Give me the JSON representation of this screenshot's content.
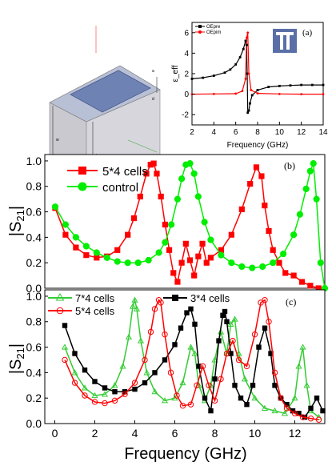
{
  "chart_data": [
    {
      "type": "diagram",
      "panel": "schematic",
      "labels": [
        "w",
        "h",
        "a",
        "d"
      ]
    },
    {
      "type": "line",
      "panel_label": "(a)",
      "xlabel": "Frequency (GHz)",
      "ylabel": "ε_eff",
      "xlim": [
        2,
        14
      ],
      "ylim": [
        -3,
        7
      ],
      "xticks": [
        2,
        4,
        6,
        8,
        10,
        12,
        14
      ],
      "yticks": [
        -2,
        0,
        2,
        4,
        6
      ],
      "legend_position": "top-left",
      "series": [
        {
          "name": "OEpre",
          "color": "#000000",
          "x": [
            2,
            3,
            4,
            5,
            5.5,
            6,
            6.4,
            6.7,
            6.9,
            7.0,
            7.05,
            7.1,
            7.2,
            7.3,
            7.5,
            8,
            9,
            10,
            11,
            12,
            13,
            14
          ],
          "y": [
            1.5,
            1.6,
            1.8,
            2.1,
            2.4,
            2.9,
            3.6,
            4.4,
            5.2,
            4.8,
            2.0,
            -1.8,
            -1.6,
            -0.9,
            -0.1,
            0.4,
            0.7,
            0.8,
            0.85,
            0.9,
            0.9,
            0.9
          ]
        },
        {
          "name": "OEpim",
          "color": "#ff0000",
          "x": [
            2,
            4,
            6,
            6.6,
            6.9,
            7.0,
            7.1,
            7.2,
            7.4,
            8,
            10,
            12,
            14
          ],
          "y": [
            0.0,
            0.02,
            0.05,
            0.3,
            1.5,
            5.5,
            6.0,
            2.0,
            0.4,
            0.08,
            0.02,
            0.0,
            0.0
          ]
        }
      ]
    },
    {
      "type": "line",
      "panel_label": "(b)",
      "ylabel": "|S21|",
      "xlim": [
        0,
        13.5
      ],
      "ylim": [
        0,
        1.05
      ],
      "yticks": [
        "0.0",
        "0.2",
        "0.4",
        "0.6",
        "0.8",
        "1.0"
      ],
      "legend_position": "top-left",
      "series": [
        {
          "name": "5*4 cells",
          "color": "#ff0000",
          "marker": "square",
          "x": [
            0.5,
            1.0,
            1.5,
            2.0,
            2.5,
            3.0,
            3.5,
            4.0,
            4.3,
            4.6,
            4.9,
            5.1,
            5.25,
            5.4,
            5.6,
            5.8,
            6.0,
            6.2,
            6.4,
            6.6,
            6.8,
            7.0,
            7.2,
            7.4,
            7.6,
            7.8,
            8.0,
            8.5,
            9.0,
            9.5,
            9.9,
            10.2,
            10.45,
            10.6,
            10.8,
            11.0,
            11.3,
            11.6,
            12.0,
            12.4,
            12.8,
            13.2
          ],
          "y": [
            0.63,
            0.42,
            0.32,
            0.26,
            0.24,
            0.25,
            0.3,
            0.42,
            0.55,
            0.72,
            0.9,
            0.97,
            0.98,
            0.9,
            0.72,
            0.5,
            0.3,
            0.12,
            0.05,
            0.2,
            0.35,
            0.22,
            0.1,
            0.25,
            0.35,
            0.2,
            0.24,
            0.3,
            0.42,
            0.62,
            0.82,
            0.95,
            0.88,
            0.65,
            0.45,
            0.3,
            0.2,
            0.12,
            0.1,
            0.05,
            0.02,
            0.0
          ]
        },
        {
          "name": "control",
          "color": "#00ee00",
          "marker": "circle",
          "x": [
            0.5,
            1.0,
            1.5,
            2.0,
            2.5,
            3.0,
            3.5,
            4.0,
            4.5,
            5.0,
            5.5,
            5.8,
            6.1,
            6.4,
            6.6,
            6.8,
            7.0,
            7.2,
            7.4,
            7.7,
            8.0,
            8.5,
            9.0,
            9.5,
            10.0,
            10.5,
            11.0,
            11.5,
            12.0,
            12.3,
            12.6,
            12.8,
            12.95,
            13.1,
            13.3,
            13.5
          ],
          "y": [
            0.64,
            0.5,
            0.4,
            0.33,
            0.28,
            0.24,
            0.21,
            0.2,
            0.2,
            0.22,
            0.28,
            0.36,
            0.5,
            0.7,
            0.86,
            0.97,
            0.98,
            0.9,
            0.72,
            0.52,
            0.38,
            0.26,
            0.2,
            0.17,
            0.16,
            0.17,
            0.2,
            0.27,
            0.42,
            0.58,
            0.78,
            0.92,
            0.98,
            0.7,
            0.2,
            0.0
          ]
        }
      ]
    },
    {
      "type": "line",
      "panel_label": "(c)",
      "xlabel": "Frequency (GHz)",
      "ylabel": "|S21|",
      "xlim": [
        -0.5,
        13.5
      ],
      "ylim": [
        0,
        1.05
      ],
      "xticks": [
        0,
        2,
        4,
        6,
        8,
        10,
        12
      ],
      "yticks": [
        "0.0",
        "0.2",
        "0.4",
        "0.6",
        "0.8",
        "1.0"
      ],
      "legend_position": "top",
      "series": [
        {
          "name": "7*4 cells",
          "color": "#33cc33",
          "marker": "triangle",
          "x": [
            0.5,
            1.0,
            1.5,
            2.0,
            2.5,
            3.0,
            3.4,
            3.7,
            3.9,
            4.0,
            4.1,
            4.3,
            4.6,
            5.0,
            5.5,
            6.0,
            6.4,
            6.8,
            7.0,
            7.2,
            7.5,
            7.8,
            8.0,
            8.3,
            8.6,
            8.8,
            9.0,
            9.2,
            9.5,
            10.0,
            10.5,
            11.0,
            11.5,
            12.0,
            12.2,
            12.4,
            12.6,
            12.8,
            13.2
          ],
          "y": [
            0.6,
            0.4,
            0.28,
            0.22,
            0.23,
            0.3,
            0.45,
            0.68,
            0.92,
            0.97,
            0.9,
            0.65,
            0.4,
            0.25,
            0.18,
            0.2,
            0.32,
            0.6,
            0.55,
            0.3,
            0.18,
            0.3,
            0.5,
            0.72,
            0.55,
            0.78,
            0.82,
            0.55,
            0.35,
            0.2,
            0.12,
            0.1,
            0.08,
            0.2,
            0.45,
            0.6,
            0.3,
            0.1,
            0.05
          ]
        },
        {
          "name": "3*4 cells",
          "color": "#000000",
          "marker": "square",
          "x": [
            0.5,
            1.0,
            1.5,
            2.0,
            2.5,
            3.0,
            3.5,
            4.0,
            4.5,
            5.0,
            5.5,
            6.0,
            6.3,
            6.6,
            6.8,
            7.0,
            7.2,
            7.5,
            7.8,
            8.0,
            8.2,
            8.4,
            8.5,
            8.6,
            8.8,
            9.0,
            9.3,
            9.6,
            9.9,
            10.2,
            10.5,
            10.8,
            11.0,
            11.3,
            11.6,
            11.9,
            12.2,
            12.5,
            12.8,
            13.1,
            13.4
          ],
          "y": [
            0.77,
            0.55,
            0.42,
            0.33,
            0.28,
            0.25,
            0.25,
            0.27,
            0.32,
            0.4,
            0.5,
            0.62,
            0.75,
            0.87,
            0.9,
            0.78,
            0.45,
            0.2,
            0.1,
            0.35,
            0.65,
            0.85,
            0.88,
            0.8,
            0.55,
            0.3,
            0.2,
            0.15,
            0.3,
            0.6,
            0.75,
            0.55,
            0.3,
            0.2,
            0.15,
            0.1,
            0.08,
            0.05,
            0.12,
            0.2,
            0.1
          ]
        },
        {
          "name": "5*4 cells",
          "color": "#ff0000",
          "marker": "circle",
          "x": [
            0.5,
            1.0,
            1.5,
            2.0,
            2.5,
            3.0,
            3.5,
            4.0,
            4.5,
            4.8,
            5.0,
            5.2,
            5.3,
            5.5,
            5.8,
            6.1,
            6.4,
            6.8,
            7.1,
            7.4,
            7.7,
            8.0,
            8.3,
            8.6,
            8.9,
            9.2,
            9.6,
            10.0,
            10.3,
            10.5,
            10.7,
            11.0,
            11.3,
            11.6,
            12.0,
            12.4,
            12.8,
            13.2
          ],
          "y": [
            0.5,
            0.32,
            0.22,
            0.17,
            0.16,
            0.18,
            0.23,
            0.32,
            0.5,
            0.72,
            0.9,
            0.97,
            0.95,
            0.7,
            0.4,
            0.22,
            0.14,
            0.15,
            0.3,
            0.45,
            0.3,
            0.18,
            0.35,
            0.55,
            0.65,
            0.5,
            0.45,
            0.7,
            0.95,
            0.97,
            0.8,
            0.4,
            0.2,
            0.12,
            0.08,
            0.05,
            0.04,
            0.03
          ]
        }
      ]
    }
  ]
}
